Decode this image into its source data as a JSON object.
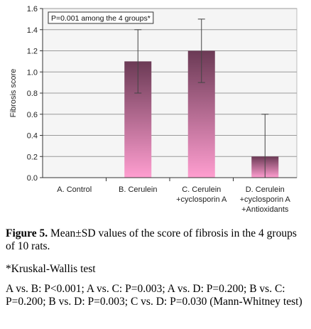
{
  "chart_data": {
    "type": "bar",
    "ylabel": "Fibrosis score",
    "ylim": [
      0,
      1.6
    ],
    "yticks": [
      "0.0",
      "0.2",
      "0.4",
      "0.6",
      "0.8",
      "1.0",
      "1.2",
      "1.4",
      "1.6"
    ],
    "categories": [
      [
        "A. Control"
      ],
      [
        "B. Cerulein"
      ],
      [
        "C. Cerulein",
        "+cyclosporin A"
      ],
      [
        "D. Cerulein",
        "+cyclosporin A",
        "+Antioxidants"
      ]
    ],
    "values": [
      0.0,
      1.1,
      1.2,
      0.2
    ],
    "sd": [
      0.0,
      0.3,
      0.3,
      0.4
    ],
    "annotation": "P=0.001 among the 4 groups*",
    "colors": {
      "bar_top": "#6b3a55",
      "bar_bottom": "#ff9ed0",
      "plot_bg": "#f5f5f5",
      "grid": "#9a9a9a"
    }
  },
  "caption": {
    "figure_label": "Figure 5.",
    "figure_text": " Mean±SD values of the score of fibrosis in the 4 groups of 10 rats.",
    "test_note": "*Kruskal-Wallis test",
    "pairwise": "A vs. B: P<0.001; A vs. C: P=0.003; A vs. D: P=0.200; B vs. C: P=0.200; B vs. D: P=0.003; C vs. D: P=0.030 (Mann-Whitney test)"
  }
}
